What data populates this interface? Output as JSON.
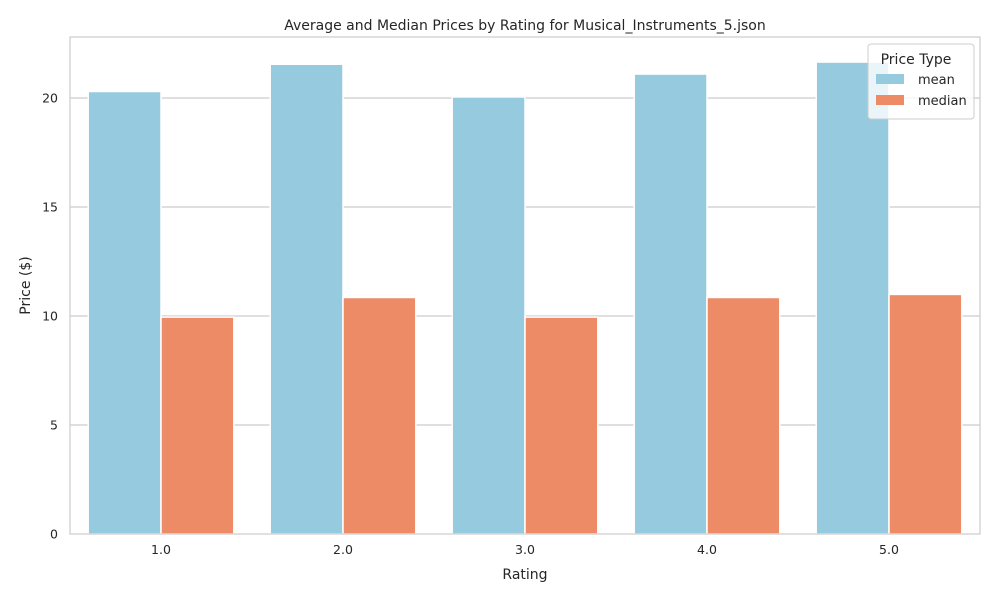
{
  "chart_data": {
    "type": "bar",
    "title": "Average and Median Prices by Rating for Musical_Instruments_5.json",
    "xlabel": "Rating",
    "ylabel": "Price ($)",
    "categories": [
      "1.0",
      "2.0",
      "3.0",
      "4.0",
      "5.0"
    ],
    "series": [
      {
        "name": "mean",
        "color": "#95cadf",
        "values": [
          20.3,
          21.55,
          20.05,
          21.1,
          21.65
        ]
      },
      {
        "name": "median",
        "color": "#ec8b66",
        "values": [
          9.95,
          10.85,
          9.95,
          10.85,
          10.99
        ]
      }
    ],
    "ylim": [
      0,
      22.8
    ],
    "yticks": [
      0,
      5,
      10,
      15,
      20
    ],
    "grid": true,
    "legend": {
      "title": "Price Type",
      "placement": "top-right"
    }
  }
}
